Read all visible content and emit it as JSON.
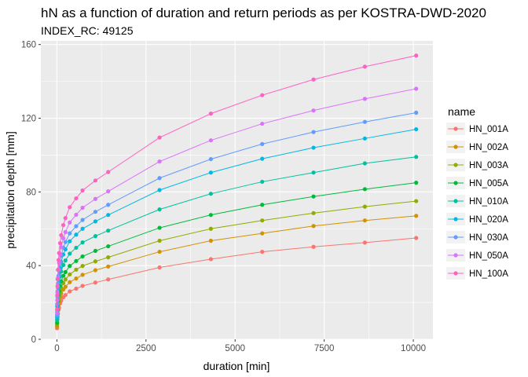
{
  "chart_data": {
    "type": "line",
    "title": "hN as a function of duration and return periods as per KOSTRA-DWD-2020",
    "subtitle": "INDEX_RC: 49125",
    "xlabel": "duration [min]",
    "ylabel": "precipitation depth [mm]",
    "xlim": [
      -450,
      10550
    ],
    "ylim": [
      0,
      162
    ],
    "xticks": [
      0,
      2500,
      5000,
      7500,
      10000
    ],
    "yticks": [
      0,
      40,
      80,
      120,
      160
    ],
    "grid": true,
    "legend_title": "name",
    "legend_position": "right",
    "x": [
      5,
      10,
      15,
      20,
      30,
      45,
      60,
      90,
      120,
      180,
      240,
      360,
      540,
      720,
      1080,
      1440,
      2880,
      4320,
      5760,
      7200,
      8640,
      10080
    ],
    "series": [
      {
        "name": "HN_001A",
        "color": "#F8766D",
        "values": [
          6,
          9,
          10.8,
          12.2,
          14,
          16,
          17.2,
          19.5,
          21,
          22.8,
          24,
          26,
          27.5,
          29,
          30.8,
          32.5,
          39,
          43.5,
          47.5,
          50.2,
          52.5,
          55
        ]
      },
      {
        "name": "HN_002A",
        "color": "#D39200",
        "values": [
          7,
          10.5,
          12.6,
          14.2,
          16.5,
          18.8,
          20.5,
          23,
          24.8,
          27,
          28.5,
          31,
          33,
          35,
          37.5,
          39.5,
          47.5,
          53.5,
          57.5,
          61.5,
          64.5,
          67
        ]
      },
      {
        "name": "HN_003A",
        "color": "#93AA00",
        "values": [
          8,
          11.8,
          14.2,
          16,
          18.5,
          21.2,
          23,
          25.8,
          27.8,
          30.5,
          32.5,
          35.2,
          37.8,
          39.8,
          42.3,
          44.5,
          53.5,
          60,
          64.5,
          68.5,
          72,
          75
        ]
      },
      {
        "name": "HN_005A",
        "color": "#00BA38",
        "values": [
          9,
          13.3,
          16,
          18.2,
          21,
          24,
          26,
          29,
          31.5,
          34.5,
          36.5,
          39.8,
          42.5,
          45,
          48,
          50.5,
          60.5,
          67.5,
          73,
          77.5,
          81.5,
          85
        ]
      },
      {
        "name": "HN_010A",
        "color": "#00C19F",
        "values": [
          10.5,
          15.5,
          18.7,
          21.2,
          24.5,
          28,
          30.5,
          34,
          36.8,
          40.3,
          42.8,
          46.5,
          49.7,
          52.6,
          56,
          59,
          70.5,
          79,
          85.5,
          90.5,
          95.5,
          99
        ]
      },
      {
        "name": "HN_020A",
        "color": "#00B9E3",
        "values": [
          12,
          17.8,
          21.4,
          24.2,
          28,
          32,
          34.8,
          38.8,
          42,
          46,
          48.8,
          53.2,
          56.8,
          60,
          64,
          67.5,
          81,
          90.5,
          98,
          104,
          109,
          114
        ]
      },
      {
        "name": "HN_030A",
        "color": "#619CFF",
        "values": [
          13,
          19.2,
          23.1,
          26.2,
          30.3,
          34.5,
          37.6,
          42,
          45.4,
          49.8,
          52.8,
          57.5,
          61.4,
          64.8,
          69.2,
          73,
          87.5,
          97.8,
          106,
          112.5,
          118,
          123
        ]
      },
      {
        "name": "HN_050A",
        "color": "#DB72FB",
        "values": [
          14.3,
          21.2,
          25.5,
          28.8,
          33.3,
          38,
          41.4,
          46.2,
          50,
          54.8,
          58.2,
          63.4,
          67.6,
          71.4,
          76.2,
          80.3,
          96.5,
          108,
          117,
          124.2,
          130.5,
          136
        ]
      },
      {
        "name": "HN_100A",
        "color": "#FF61C3",
        "values": [
          16.2,
          24,
          28.8,
          32.6,
          37.7,
          43,
          46.8,
          52.2,
          56.5,
          62,
          65.8,
          71.7,
          76.5,
          80.8,
          86.2,
          90.8,
          109.5,
          122.5,
          132.5,
          141,
          148,
          154
        ]
      }
    ]
  }
}
